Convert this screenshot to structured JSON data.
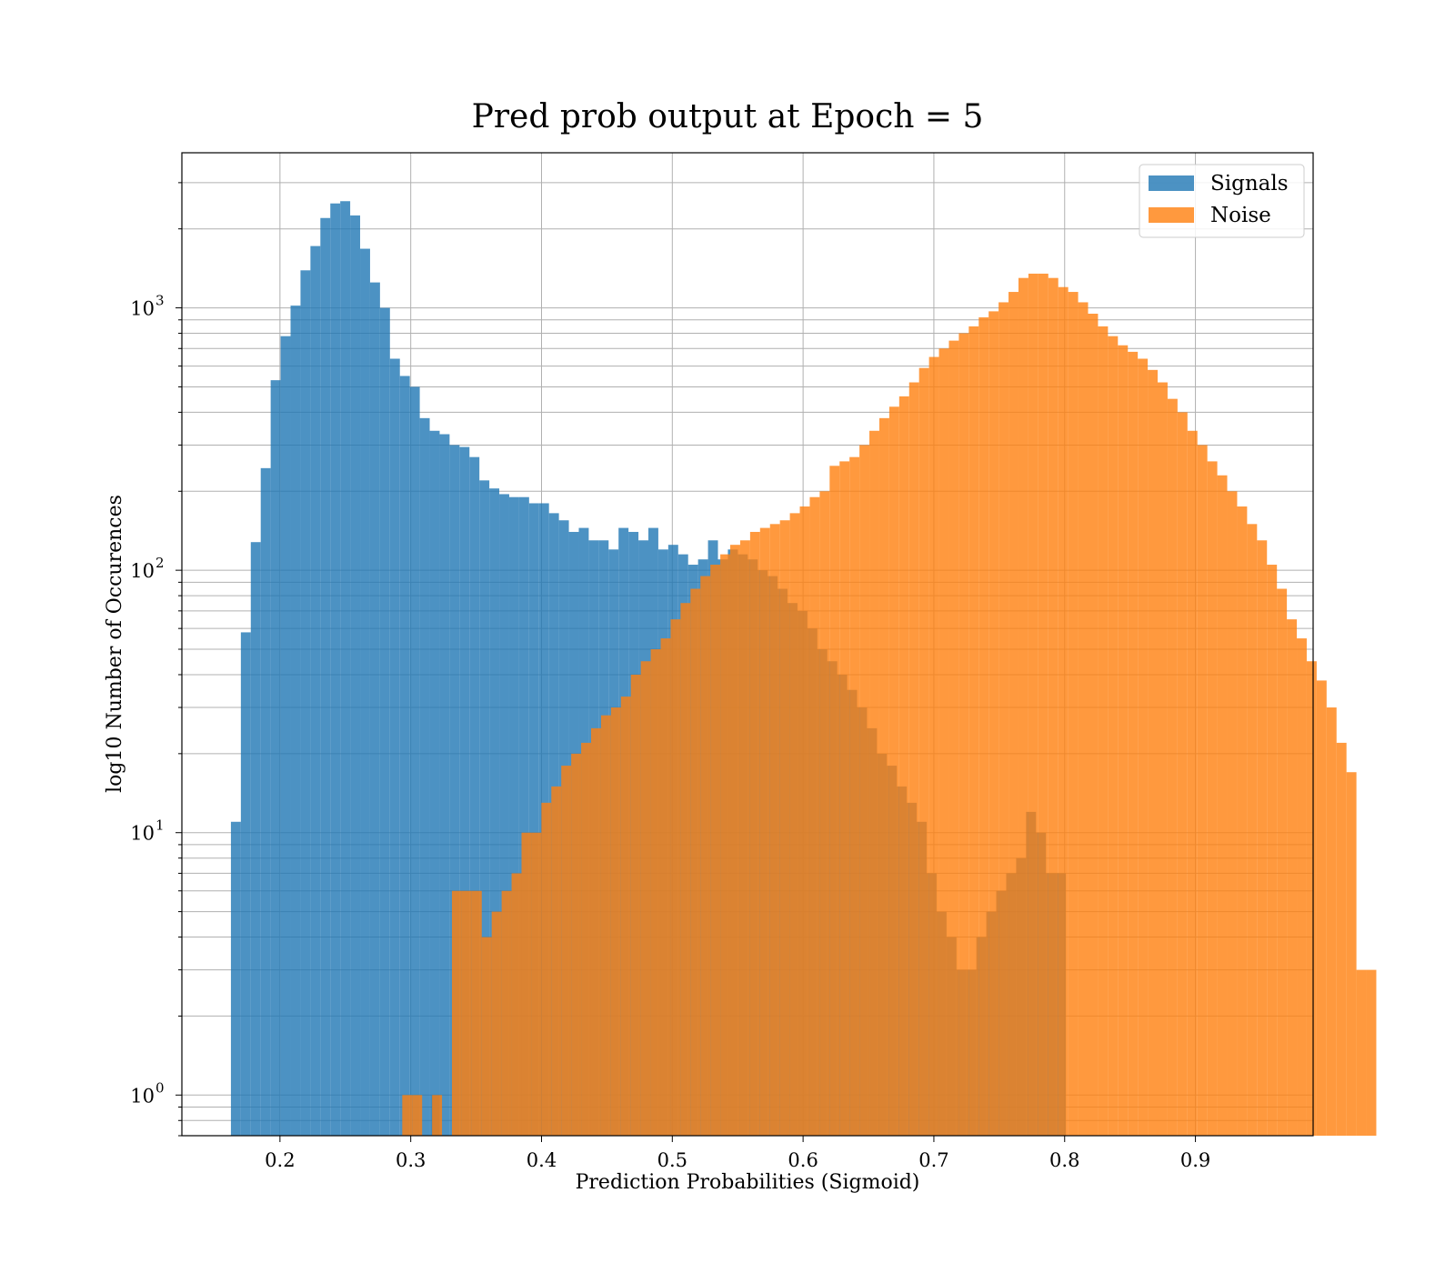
{
  "chart_data": {
    "type": "bar",
    "title": "Pred prob output at Epoch = 5",
    "xlabel": "Prediction Probabilities (Sigmoid)",
    "ylabel": "log10 Number of Occurences",
    "yscale": "log",
    "xlim": [
      0.125,
      0.99
    ],
    "ylim": [
      0.7,
      3900
    ],
    "xticks": [
      0.2,
      0.3,
      0.4,
      0.5,
      0.6,
      0.7,
      0.8,
      0.9
    ],
    "xtick_labels": [
      "0.2",
      "0.3",
      "0.4",
      "0.5",
      "0.6",
      "0.7",
      "0.8",
      "0.9"
    ],
    "yticks": [
      {
        "value": 1,
        "base": "10",
        "exp": "0"
      },
      {
        "value": 10,
        "base": "10",
        "exp": "1"
      },
      {
        "value": 100,
        "base": "10",
        "exp": "2"
      },
      {
        "value": 1000,
        "base": "10",
        "exp": "3"
      }
    ],
    "grid": true,
    "legend_position": "top-right",
    "series": [
      {
        "name": "Signals",
        "color": "#1f77b4",
        "opacity": 0.8,
        "bin_start": 0.1625,
        "bin_width": 0.0076,
        "values": [
          11,
          58,
          128,
          245,
          530,
          780,
          1020,
          1390,
          1720,
          2200,
          2500,
          2550,
          2250,
          1680,
          1250,
          1000,
          640,
          550,
          500,
          380,
          340,
          330,
          300,
          295,
          270,
          220,
          205,
          195,
          190,
          190,
          180,
          180,
          165,
          155,
          140,
          145,
          130,
          130,
          120,
          145,
          140,
          130,
          145,
          120,
          125,
          115,
          105,
          110,
          130,
          110,
          120,
          115,
          110,
          100,
          95,
          85,
          75,
          70,
          60,
          50,
          45,
          40,
          35,
          30,
          25,
          20,
          18,
          15,
          13,
          11,
          7,
          5,
          4,
          3,
          3,
          4,
          5,
          6,
          7,
          8,
          12,
          10,
          7,
          7
        ],
        "tail_bins": [
          {
            "x0": 0.316,
            "x1": 0.322,
            "value": 1
          }
        ]
      },
      {
        "name": "Noise",
        "color": "#ff7f0e",
        "opacity": 0.8,
        "bin_start": 0.2935,
        "bin_width": 0.0076,
        "values": [
          1,
          1,
          0,
          1,
          0,
          6,
          6,
          6,
          4,
          5,
          6,
          7,
          10,
          10,
          13,
          15,
          18,
          20,
          22,
          25,
          28,
          30,
          33,
          40,
          45,
          50,
          55,
          65,
          75,
          85,
          95,
          105,
          115,
          125,
          130,
          140,
          145,
          150,
          155,
          165,
          175,
          190,
          200,
          250,
          260,
          270,
          300,
          340,
          380,
          420,
          460,
          520,
          590,
          650,
          700,
          750,
          800,
          850,
          920,
          970,
          1050,
          1150,
          1300,
          1350,
          1350,
          1300,
          1200,
          1150,
          1050,
          950,
          850,
          780,
          720,
          680,
          640,
          580,
          520,
          450,
          400,
          340,
          300,
          260,
          230,
          200,
          175,
          150,
          130,
          105,
          85,
          65,
          55,
          45,
          38,
          30,
          22,
          17,
          3,
          3
        ]
      }
    ]
  }
}
